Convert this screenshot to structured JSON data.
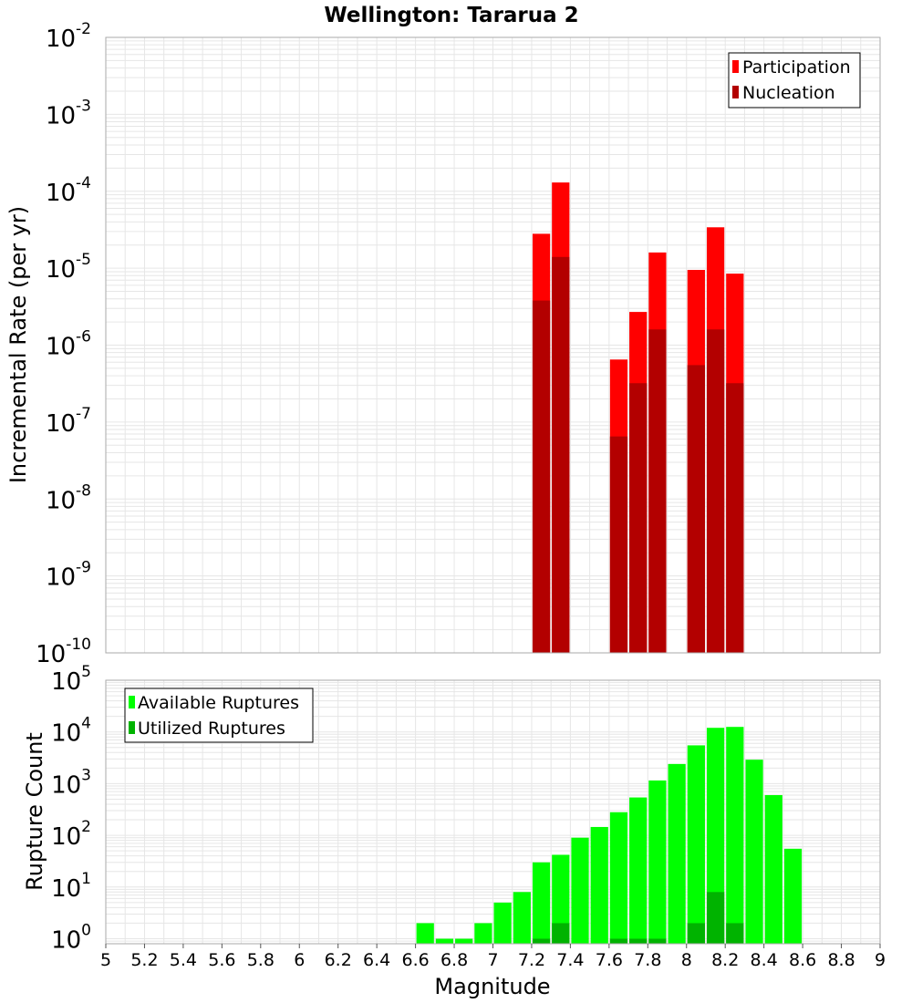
{
  "title": "Wellington: Tararua 2",
  "colors": {
    "participation": "#ff0000",
    "nucleation": "#b30000",
    "available": "#00ff00",
    "utilized": "#00b300",
    "grid": "#e6e6e6",
    "frame": "#aaaaaa"
  },
  "chart_data": [
    {
      "type": "bar",
      "name": "rate",
      "xlabel": "",
      "ylabel": "Incremental Rate (per yr)",
      "xlim": [
        5,
        9
      ],
      "ylim": [
        1e-10,
        0.01
      ],
      "yscale": "log",
      "grid": true,
      "legend_position": "top-right",
      "legend": [
        "Participation",
        "Nucleation"
      ],
      "x": [
        7.25,
        7.35,
        7.65,
        7.75,
        7.85,
        8.05,
        8.15,
        8.25
      ],
      "series": [
        {
          "name": "Participation",
          "values": [
            2.8e-05,
            0.00013,
            6.5e-07,
            2.7e-06,
            1.6e-05,
            9.5e-06,
            3.4e-05,
            8.5e-06
          ]
        },
        {
          "name": "Nucleation",
          "values": [
            3.8e-06,
            1.4e-05,
            6.5e-08,
            3.2e-07,
            1.6e-06,
            5.5e-07,
            1.6e-06,
            3.2e-07
          ]
        }
      ]
    },
    {
      "type": "bar",
      "name": "count",
      "xlabel": "Magnitude",
      "ylabel": "Rupture Count",
      "xlim": [
        5,
        9
      ],
      "ylim": [
        0.8,
        100000
      ],
      "yscale": "log",
      "grid": true,
      "legend_position": "top-left",
      "legend": [
        "Available Ruptures",
        "Utilized Ruptures"
      ],
      "x": [
        6.65,
        6.75,
        6.85,
        6.95,
        7.05,
        7.15,
        7.25,
        7.35,
        7.45,
        7.55,
        7.65,
        7.75,
        7.85,
        7.95,
        8.05,
        8.15,
        8.25,
        8.35,
        8.45,
        8.55
      ],
      "series": [
        {
          "name": "Available Ruptures",
          "values": [
            2,
            1,
            1,
            2,
            5,
            8,
            30,
            42,
            90,
            145,
            280,
            540,
            1150,
            2400,
            5500,
            12000,
            12500,
            2900,
            600,
            55
          ]
        },
        {
          "name": "Utilized Ruptures",
          "values": [
            0,
            0,
            0,
            0,
            0,
            0,
            1,
            2,
            0,
            0,
            1,
            1,
            1,
            0,
            2,
            8,
            2,
            0,
            0,
            0
          ]
        }
      ]
    }
  ],
  "x_ticks": [
    "5",
    "5.2",
    "5.4",
    "5.6",
    "5.8",
    "6",
    "6.2",
    "6.4",
    "6.6",
    "6.8",
    "7",
    "7.2",
    "7.4",
    "7.6",
    "7.8",
    "8",
    "8.2",
    "8.4",
    "8.6",
    "8.8",
    "9"
  ]
}
